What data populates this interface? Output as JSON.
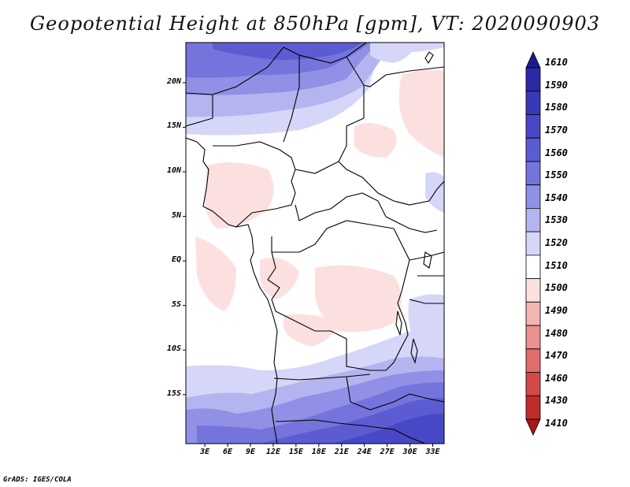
{
  "title": "Geopotential Height at 850hPa [gpm], VT: 2020090903",
  "footer": "GrADS: IGES/COLA",
  "axes": {
    "lon_labels": [
      "3E",
      "6E",
      "9E",
      "12E",
      "15E",
      "18E",
      "21E",
      "24E",
      "27E",
      "30E",
      "33E"
    ],
    "lat_labels": [
      "20N",
      "15N",
      "10N",
      "5N",
      "EQ",
      "5S",
      "10S",
      "15S"
    ],
    "lon_values": [
      3,
      6,
      9,
      12,
      15,
      18,
      21,
      24,
      27,
      30,
      33
    ],
    "lat_values": [
      20,
      15,
      10,
      5,
      0,
      -5,
      -10,
      -15
    ]
  },
  "colorbar": {
    "levels": [
      "1610",
      "1590",
      "1580",
      "1570",
      "1560",
      "1550",
      "1540",
      "1530",
      "1520",
      "1510",
      "1500",
      "1490",
      "1480",
      "1470",
      "1460",
      "1430",
      "1410"
    ],
    "colors": [
      "#1a1a8c",
      "#2a2aa6",
      "#3838b8",
      "#4848c6",
      "#5c5cd2",
      "#7474dc",
      "#9090e6",
      "#b4b4f0",
      "#d6d6f8",
      "#ffffff",
      "#fce0e0",
      "#f4b4b4",
      "#ec9090",
      "#e06c6c",
      "#d44848",
      "#c02c2c",
      "#a81818"
    ]
  }
}
